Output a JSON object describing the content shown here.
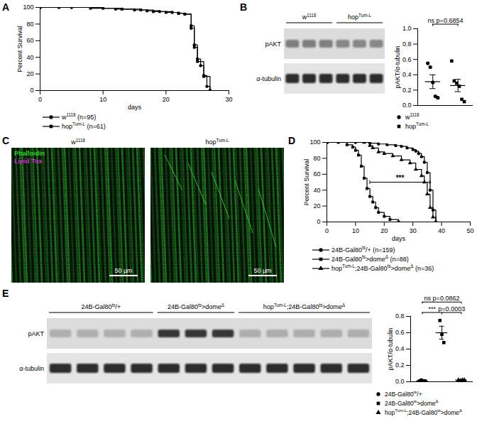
{
  "chart_data": [
    {
      "panel": "A",
      "type": "line",
      "x_label": "days",
      "y_label": "Percent Survival",
      "xlim": [
        0,
        30
      ],
      "xticks": [
        0,
        10,
        20,
        30
      ],
      "ylim": [
        0,
        100
      ],
      "yticks": [
        0,
        20,
        40,
        60,
        80,
        100
      ],
      "line_style": "step",
      "legend": "bottom",
      "series": [
        {
          "name": "w1118 (n=95)",
          "marker": "circle",
          "color": "#000000",
          "x": [
            0,
            5,
            10,
            12,
            15,
            17,
            19,
            21,
            22,
            23,
            24,
            24.5,
            25,
            25.5,
            26,
            26.5,
            27
          ],
          "values": [
            100,
            100,
            99,
            98,
            97,
            96,
            95,
            94,
            93,
            92,
            75,
            55,
            38,
            30,
            18,
            5,
            0
          ]
        },
        {
          "name": "hopTum-L (n=61)",
          "marker": "square",
          "color": "#000000",
          "x": [
            0,
            3,
            8,
            13,
            16,
            18,
            20,
            22,
            23,
            24,
            24.5,
            25,
            26,
            27
          ],
          "values": [
            100,
            100,
            99,
            98,
            97,
            95,
            94,
            93,
            92,
            78,
            52,
            35,
            17,
            0
          ]
        }
      ]
    },
    {
      "panel": "B",
      "type": "blot",
      "lane_groups": [
        {
          "name": "w1118",
          "lanes": 3
        },
        {
          "name": "hopTum-L",
          "lanes": 3
        }
      ],
      "rows": [
        "pAKT",
        "α-tubulin"
      ]
    },
    {
      "type": "scatter",
      "y_label": "pAKT/α-tubulin",
      "ylim": [
        0,
        1
      ],
      "yticks": [
        {
          "value": 0,
          "label": "0.0"
        },
        {
          "value": 0.2,
          "label": "0.2"
        },
        {
          "value": 0.4,
          "label": "0.4"
        },
        {
          "value": 0.6,
          "label": "0.6"
        },
        {
          "value": 0.8,
          "label": "0.8"
        },
        {
          "value": 1,
          "label": "1.0"
        }
      ],
      "tick_labels": "y",
      "legend": "bottom",
      "series": [
        {
          "name": "w1118",
          "marker": "circle",
          "color": "#000000",
          "values": [
            0.55,
            0.5,
            0.3,
            0.12,
            0.1
          ],
          "mean": 0.31,
          "sem": 0.09
        },
        {
          "name": "hopTum-L",
          "marker": "square",
          "color": "#000000",
          "values": [
            0.58,
            0.32,
            0.29,
            0.25,
            0.08,
            0.05
          ],
          "mean": 0.26,
          "sem": 0.08
        }
      ],
      "annotations": [
        {
          "from": "w1118",
          "to": "hopTum-L",
          "text": "ns p=0.6854"
        }
      ]
    },
    {
      "panel": "C",
      "type": "image",
      "images": [
        "w1118",
        "hopTum-L"
      ],
      "channels": [
        {
          "name": "Phalloidin",
          "color": "#33cc33"
        },
        {
          "name": "Lipid Tox",
          "color": "#cc33cc"
        }
      ],
      "scale_bar": "50 µm"
    },
    {
      "panel": "D",
      "type": "line",
      "x_label": "days",
      "y_label": "Percent Survival",
      "xlim": [
        0,
        50
      ],
      "xticks": [
        0,
        10,
        20,
        30,
        40,
        50
      ],
      "ylim": [
        0,
        100
      ],
      "yticks": [
        0,
        20,
        40,
        60,
        80,
        100
      ],
      "line_style": "step",
      "legend": "bottom",
      "series": [
        {
          "name": "24B-Gal80ts/+ (n=159)",
          "marker": "circle",
          "color": "#000000",
          "x": [
            0,
            10,
            15,
            18,
            21,
            24,
            26,
            28,
            30,
            31,
            32,
            33,
            34,
            35,
            36,
            37,
            38
          ],
          "values": [
            100,
            100,
            99,
            98,
            97,
            96,
            95,
            93,
            91,
            89,
            86,
            82,
            75,
            62,
            40,
            15,
            0
          ]
        },
        {
          "name": "24B-Gal80ts>domeΔ (n=88)",
          "marker": "square",
          "color": "#000000",
          "x": [
            0,
            4,
            7,
            9,
            10,
            11,
            12,
            13,
            14,
            15,
            16,
            17,
            18,
            20,
            22,
            25
          ],
          "values": [
            100,
            100,
            97,
            94,
            90,
            84,
            70,
            55,
            42,
            32,
            25,
            18,
            12,
            7,
            3,
            0
          ]
        },
        {
          "name": "hopTum-L;24B-Gal80ts>domeΔ (n=36)",
          "marker": "triangle",
          "color": "#000000",
          "x": [
            0,
            13,
            15,
            16,
            18,
            20,
            23,
            26,
            29,
            31,
            33,
            34,
            35,
            36,
            37,
            38
          ],
          "values": [
            100,
            100,
            96,
            93,
            88,
            86,
            83,
            78,
            74,
            66,
            58,
            50,
            35,
            18,
            6,
            0
          ]
        }
      ],
      "annotations": [
        {
          "text": "***",
          "x": [
            15,
            36
          ],
          "y": 50
        }
      ]
    },
    {
      "panel": "E",
      "type": "blot",
      "lane_groups": [
        {
          "name": "24B-Gal80ts/+",
          "lanes": 4
        },
        {
          "name": "24B-Gal80ts>domeΔ",
          "lanes": 3
        },
        {
          "name": "hopTum-L;24B-Gal80ts>domeΔ",
          "lanes": 5
        }
      ],
      "rows": [
        "pAKT",
        "α-tubulin"
      ]
    },
    {
      "type": "scatter",
      "y_label": "pAKT/α-tubulin",
      "ylim": [
        0,
        0.8
      ],
      "yticks": [
        {
          "value": 0,
          "label": "0.0"
        },
        {
          "value": 0.2,
          "label": "0.2"
        },
        {
          "value": 0.4,
          "label": "0.4"
        },
        {
          "value": 0.6,
          "label": "0.6"
        },
        {
          "value": 0.8,
          "label": "0.8"
        }
      ],
      "tick_labels": "y",
      "legend": "bottom",
      "series": [
        {
          "name": "24B-Gal80ts/+",
          "marker": "circle",
          "color": "#000000",
          "values": [
            0.01,
            0.02,
            0.01,
            0.01
          ],
          "mean": 0.01,
          "sem": 0.003
        },
        {
          "name": "24B-Gal80ts>domeΔ",
          "marker": "square",
          "color": "#000000",
          "values": [
            0.75,
            0.58,
            0.48
          ],
          "mean": 0.6,
          "sem": 0.08
        },
        {
          "name": "hopTum-L;24B-Gal80ts>domeΔ",
          "marker": "triangle",
          "color": "#000000",
          "values": [
            0.02,
            0.01,
            0.02,
            0.02
          ],
          "mean": 0.02,
          "sem": 0.003
        }
      ],
      "annotations": [
        {
          "from": "24B-Gal80ts/+",
          "to": "hopTum-L;24B-Gal80ts>domeΔ",
          "text": "ns p=0.0862"
        },
        {
          "from": "24B-Gal80ts/+",
          "to": "24B-Gal80ts>domeΔ",
          "text": "***"
        },
        {
          "from": "24B-Gal80ts>domeΔ",
          "to": "hopTum-L;24B-Gal80ts>domeΔ",
          "text": "p=0.0003"
        }
      ]
    }
  ]
}
